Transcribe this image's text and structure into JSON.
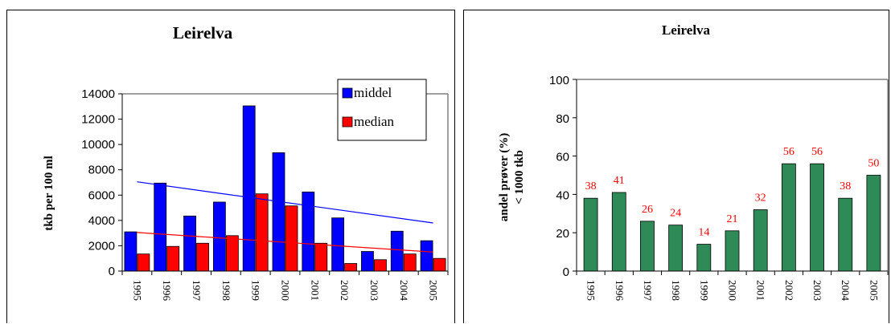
{
  "colors": {
    "middel": "#0000ff",
    "median": "#ff0000",
    "andel": "#2e8b57",
    "trend_middel": "#0000ff",
    "trend_median": "#ff0000",
    "data_label": "#ff0000"
  },
  "chart_data": [
    {
      "type": "bar",
      "title": "Leirelva",
      "ylabel": "tkb per 100 ml",
      "xlabel": "",
      "categories": [
        "1995",
        "1996",
        "1997",
        "1998",
        "1999",
        "2000",
        "2001",
        "2002",
        "2003",
        "2004",
        "2005"
      ],
      "series": [
        {
          "name": "middel",
          "values": [
            3100,
            6950,
            4350,
            5450,
            13050,
            9350,
            6250,
            4200,
            1550,
            3150,
            2400
          ]
        },
        {
          "name": "median",
          "values": [
            1350,
            1950,
            2200,
            2800,
            6100,
            5150,
            2200,
            600,
            900,
            1350,
            1000
          ]
        }
      ],
      "trendlines": [
        {
          "series": "middel",
          "start": 7050,
          "end": 3800
        },
        {
          "series": "median",
          "start": 3050,
          "end": 1500
        }
      ],
      "ylim": [
        0,
        14000
      ],
      "yticks": [
        "0",
        "2000",
        "4000",
        "6000",
        "8000",
        "10000",
        "12000",
        "14000"
      ],
      "legend": "top-right",
      "grid": false
    },
    {
      "type": "bar",
      "title": "Leirelva",
      "ylabel": "andel prøver (%)",
      "ylabel2": "< 1000 tkb",
      "xlabel": "",
      "categories": [
        "1995",
        "1996",
        "1997",
        "1998",
        "1999",
        "2000",
        "2001",
        "2002",
        "2003",
        "2004",
        "2005"
      ],
      "values": [
        38,
        41,
        26,
        24,
        14,
        21,
        32,
        56,
        56,
        38,
        50
      ],
      "data_labels": [
        "38",
        "41",
        "26",
        "24",
        "14",
        "21",
        "32",
        "56",
        "56",
        "38",
        "50"
      ],
      "ylim": [
        0,
        100
      ],
      "yticks": [
        "0",
        "20",
        "40",
        "60",
        "80",
        "100"
      ],
      "grid": false
    }
  ]
}
